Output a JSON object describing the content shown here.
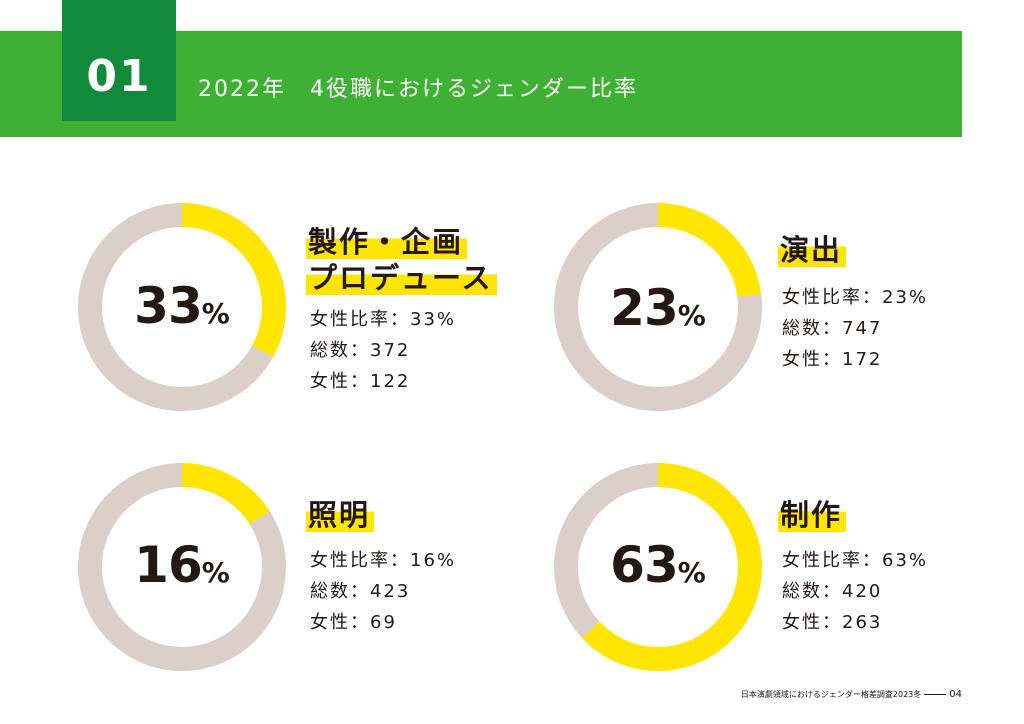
{
  "header": {
    "section_number": "01",
    "title": "2022年　4役職におけるジェンダー比率"
  },
  "colors": {
    "female": "#ffe500",
    "other": "#dbcfca",
    "header_green": "#3eb135",
    "badge_green": "#128a3b"
  },
  "chart_data": [
    {
      "type": "pie",
      "title_lines": [
        "製作・企画",
        "プロデュース"
      ],
      "values": [
        33,
        67
      ],
      "center_value": "33",
      "center_unit": "%",
      "stats": [
        "女性比率：33%",
        "総数：372",
        "女性：122"
      ]
    },
    {
      "type": "pie",
      "title_lines": [
        "演出"
      ],
      "values": [
        23,
        77
      ],
      "center_value": "23",
      "center_unit": "%",
      "stats": [
        "女性比率：23%",
        "総数：747",
        "女性：172"
      ]
    },
    {
      "type": "pie",
      "title_lines": [
        "照明"
      ],
      "values": [
        16,
        84
      ],
      "center_value": "16",
      "center_unit": "%",
      "stats": [
        "女性比率：16%",
        "総数：423",
        "女性：69"
      ]
    },
    {
      "type": "pie",
      "title_lines": [
        "制作"
      ],
      "values": [
        63,
        37
      ],
      "center_value": "63",
      "center_unit": "%",
      "stats": [
        "女性比率：63%",
        "総数：420",
        "女性：263"
      ]
    }
  ],
  "footer": {
    "publication": "日本演劇領域におけるジェンダー格差調査2023冬",
    "page_number": "04"
  }
}
